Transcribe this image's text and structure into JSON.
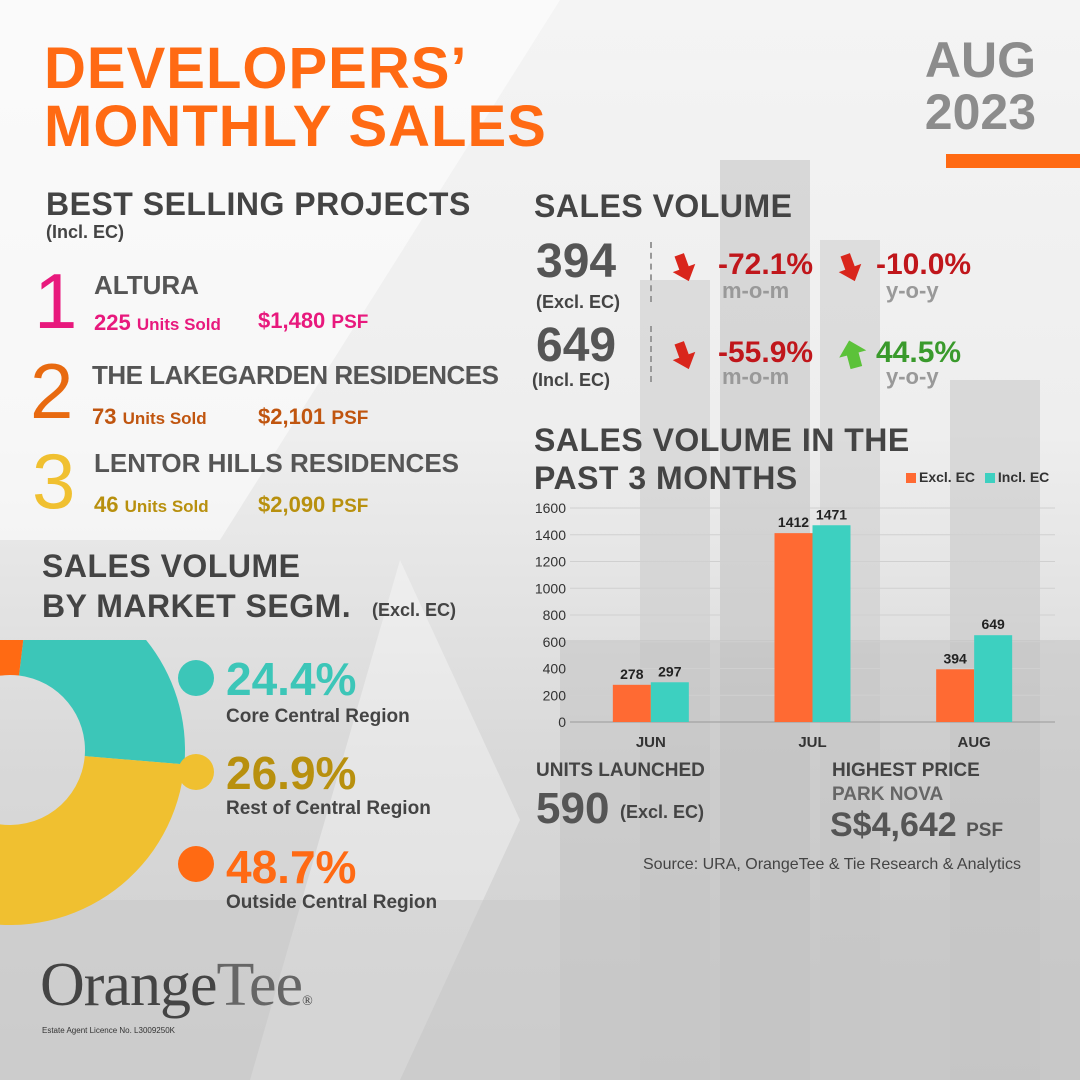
{
  "header": {
    "title_line1": "DEVELOPERS’",
    "title_line2": "MONTHLY SALES",
    "month": "AUG",
    "year": "2023"
  },
  "best_selling": {
    "heading": "BEST SELLING PROJECTS",
    "note": "(Incl. EC)",
    "projects": [
      {
        "rank": "1",
        "name": "ALTURA",
        "units": "225",
        "units_label": "Units Sold",
        "price": "$1,480",
        "price_label": "PSF",
        "color": "#e8197d"
      },
      {
        "rank": "2",
        "name": "THE LAKEGARDEN RESIDENCES",
        "units": "73",
        "units_label": "Units Sold",
        "price": "$2,101",
        "price_label": "PSF",
        "color": "#e86a10"
      },
      {
        "rank": "3",
        "name": "LENTOR HILLS RESIDENCES",
        "units": "46",
        "units_label": "Units Sold",
        "price": "$2,090",
        "price_label": "PSF",
        "color": "#c9a21c"
      }
    ]
  },
  "sales_volume": {
    "heading": "SALES VOLUME",
    "rows": [
      {
        "value": "394",
        "label": "(Excl. EC)",
        "mom": "-72.1%",
        "mom_label": "m-o-m",
        "mom_dir": "down",
        "yoy": "-10.0%",
        "yoy_label": "y-o-y",
        "yoy_dir": "down"
      },
      {
        "value": "649",
        "label": "(Incl. EC)",
        "mom": "-55.9%",
        "mom_label": "m-o-m",
        "mom_dir": "down",
        "yoy": "44.5%",
        "yoy_label": "y-o-y",
        "yoy_dir": "up"
      }
    ],
    "colors": {
      "down": "#c0161b",
      "up": "#3a9a2c",
      "down_arrow": "#d9261c",
      "up_arrow": "#5cc23a"
    }
  },
  "segments": {
    "heading_line1": "SALES VOLUME",
    "heading_line2": "BY MARKET SEGM.",
    "note": "(Excl. EC)",
    "items": [
      {
        "pct": "24.4%",
        "value": 24.4,
        "label": "Core Central Region",
        "color": "#3cc6b8",
        "text_color": "#3cc6b8"
      },
      {
        "pct": "26.9%",
        "value": 26.9,
        "label": "Rest of Central Region",
        "color": "#f0c030",
        "text_color": "#b8900e"
      },
      {
        "pct": "48.7%",
        "value": 48.7,
        "label": "Outside Central Region",
        "color": "#ff6a13",
        "text_color": "#ff6a13"
      }
    ]
  },
  "chart_data": {
    "type": "bar",
    "title": "SALES VOLUME IN THE PAST 3 MONTHS",
    "title_line1": "SALES VOLUME IN THE",
    "title_line2": "PAST 3 MONTHS",
    "categories": [
      "JUN",
      "JUL",
      "AUG"
    ],
    "series": [
      {
        "name": "Excl. EC",
        "values": [
          278,
          1412,
          394
        ],
        "color": "#ff6a33"
      },
      {
        "name": "Incl. EC",
        "values": [
          297,
          1471,
          649
        ],
        "color": "#3dd0c0"
      }
    ],
    "ylim": [
      0,
      1600
    ],
    "yticks": [
      0,
      200,
      400,
      600,
      800,
      1000,
      1200,
      1400,
      1600
    ],
    "grid": true,
    "legend": "top-right"
  },
  "units_launched": {
    "heading": "UNITS LAUNCHED",
    "value": "590",
    "note": "(Excl. EC)"
  },
  "highest_price": {
    "heading": "HIGHEST PRICE",
    "project": "PARK NOVA",
    "value": "S$4,642",
    "unit": "PSF"
  },
  "source": "Source: URA, OrangeTee  & Tie Research  & Analytics",
  "logo": {
    "orange": "Orange",
    "tee": "Tee",
    "mark": "®",
    "licence": "Estate Agent Licence No. L3009250K"
  }
}
